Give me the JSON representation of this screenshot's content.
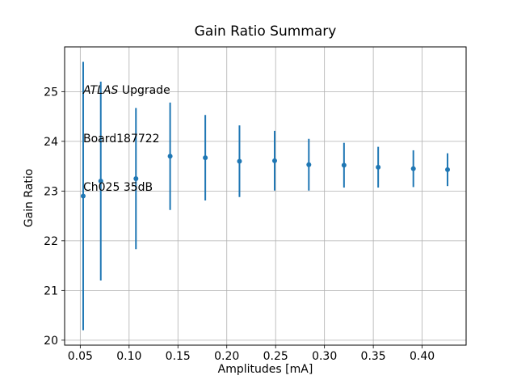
{
  "chart_data": {
    "type": "scatter",
    "title": "Gain Ratio Summary",
    "xlabel": "Amplitudes [mA]",
    "ylabel": "Gain Ratio",
    "annotation": {
      "line1_italic": "ATLAS",
      "line1_rest": " Upgrade",
      "line2": "Board187722",
      "line3": "Ch025 35dB"
    },
    "x": [
      0.053,
      0.071,
      0.107,
      0.142,
      0.178,
      0.213,
      0.249,
      0.284,
      0.32,
      0.355,
      0.391,
      0.426
    ],
    "y": [
      22.9,
      23.2,
      23.25,
      23.7,
      23.67,
      23.6,
      23.61,
      23.53,
      23.52,
      23.48,
      23.45,
      23.43
    ],
    "yerr": [
      2.7,
      2.0,
      1.42,
      1.08,
      0.86,
      0.72,
      0.6,
      0.52,
      0.45,
      0.41,
      0.37,
      0.33
    ],
    "xlim": [
      0.034,
      0.445
    ],
    "ylim": [
      19.9,
      25.9
    ],
    "xticks": [
      0.05,
      0.1,
      0.15,
      0.2,
      0.25,
      0.3,
      0.35,
      0.4
    ],
    "xtick_labels": [
      "0.05",
      "0.10",
      "0.15",
      "0.20",
      "0.25",
      "0.30",
      "0.35",
      "0.40"
    ],
    "yticks": [
      20,
      21,
      22,
      23,
      24,
      25
    ],
    "ytick_labels": [
      "20",
      "21",
      "22",
      "23",
      "24",
      "25"
    ],
    "grid": true,
    "legend": "none",
    "colors": {
      "series": "#1f77b4",
      "grid": "#b0b0b0",
      "spine": "#000000",
      "text": "#000000",
      "background": "#ffffff"
    }
  }
}
